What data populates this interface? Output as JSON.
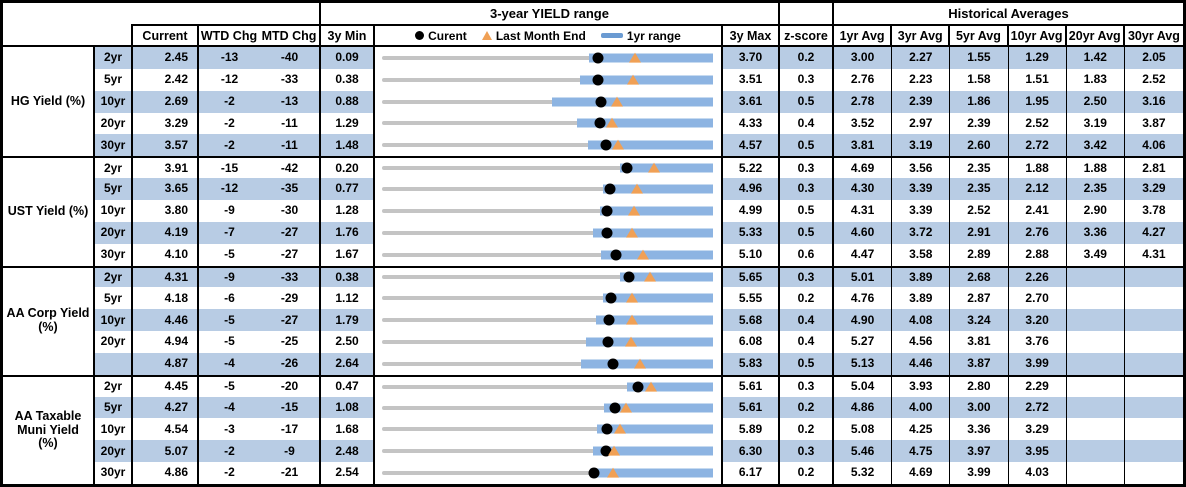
{
  "header": {
    "range_title": "3-year YIELD range",
    "hist_title": "Historical Averages",
    "col_current": "Current",
    "col_wtd": "WTD Chg",
    "col_mtd": "MTD Chg",
    "col_min": "3y Min",
    "col_max": "3y Max",
    "col_z": "z-score",
    "avg_cols": [
      "1yr Avg",
      "3yr Avg",
      "5yr Avg",
      "10yr Avg",
      "20yr Avg",
      "30yr Avg"
    ],
    "legend": {
      "current": "Curent",
      "last_month": "Last Month End",
      "range": "1yr range"
    }
  },
  "colors": {
    "row_shade": "#b8cce4",
    "range_bar": "#8db4e2",
    "track": "#c4c4c4",
    "marker_triangle": "#f0a055",
    "marker_dot": "#000000",
    "legend_dash": "#6b9bd2",
    "border": "#000000"
  },
  "chart_data": {
    "type": "table",
    "note": "Each row has a range strip: gray track spans 3y Min to 3y Max, blue bar is 1yr range (extends to 3y Max), black dot = Current, orange triangle = Last Month End (Current minus MTD change in bp).",
    "groups": [
      {
        "label_lines": [
          "HG Yield (%)"
        ],
        "rows": [
          {
            "tenor": "2yr",
            "current": "2.45",
            "wtd": "-13",
            "mtd": "-40",
            "min": "0.09",
            "max": "3.70",
            "z": "0.2",
            "avgs": [
              "3.00",
              "2.27",
              "1.55",
              "1.29",
              "1.42",
              "2.05"
            ],
            "bar_lo": 2.35,
            "lme": 2.85
          },
          {
            "tenor": "5yr",
            "current": "2.42",
            "wtd": "-12",
            "mtd": "-33",
            "min": "0.38",
            "max": "3.51",
            "z": "0.3",
            "avgs": [
              "2.76",
              "2.23",
              "1.58",
              "1.51",
              "1.83",
              "2.52"
            ],
            "bar_lo": 2.25,
            "lme": 2.75
          },
          {
            "tenor": "10yr",
            "current": "2.69",
            "wtd": "-2",
            "mtd": "-13",
            "min": "0.88",
            "max": "3.61",
            "z": "0.5",
            "avgs": [
              "2.78",
              "2.39",
              "1.86",
              "1.95",
              "2.50",
              "3.16"
            ],
            "bar_lo": 2.28,
            "lme": 2.82
          },
          {
            "tenor": "20yr",
            "current": "3.29",
            "wtd": "-2",
            "mtd": "-11",
            "min": "1.29",
            "max": "4.33",
            "z": "0.4",
            "avgs": [
              "3.52",
              "2.97",
              "2.39",
              "2.52",
              "3.19",
              "3.87"
            ],
            "bar_lo": 3.08,
            "lme": 3.4
          },
          {
            "tenor": "30yr",
            "current": "3.57",
            "wtd": "-2",
            "mtd": "-11",
            "min": "1.48",
            "max": "4.57",
            "z": "0.5",
            "avgs": [
              "3.81",
              "3.19",
              "2.60",
              "2.72",
              "3.42",
              "4.06"
            ],
            "bar_lo": 3.4,
            "lme": 3.68
          }
        ]
      },
      {
        "label_lines": [
          "UST Yield (%)"
        ],
        "rows": [
          {
            "tenor": "2yr",
            "current": "3.91",
            "wtd": "-15",
            "mtd": "-42",
            "min": "0.20",
            "max": "5.22",
            "z": "0.3",
            "avgs": [
              "4.69",
              "3.56",
              "2.35",
              "1.88",
              "1.88",
              "2.81"
            ],
            "bar_lo": 3.81,
            "lme": 4.33
          },
          {
            "tenor": "5yr",
            "current": "3.65",
            "wtd": "-12",
            "mtd": "-35",
            "min": "0.77",
            "max": "4.96",
            "z": "0.3",
            "avgs": [
              "4.30",
              "3.39",
              "2.35",
              "2.12",
              "2.35",
              "3.29"
            ],
            "bar_lo": 3.57,
            "lme": 4.0
          },
          {
            "tenor": "10yr",
            "current": "3.80",
            "wtd": "-9",
            "mtd": "-30",
            "min": "1.28",
            "max": "4.99",
            "z": "0.5",
            "avgs": [
              "4.31",
              "3.39",
              "2.52",
              "2.41",
              "2.90",
              "3.78"
            ],
            "bar_lo": 3.72,
            "lme": 4.1
          },
          {
            "tenor": "20yr",
            "current": "4.19",
            "wtd": "-7",
            "mtd": "-27",
            "min": "1.76",
            "max": "5.33",
            "z": "0.5",
            "avgs": [
              "4.60",
              "3.72",
              "2.91",
              "2.76",
              "3.36",
              "4.27"
            ],
            "bar_lo": 4.04,
            "lme": 4.46
          },
          {
            "tenor": "30yr",
            "current": "4.10",
            "wtd": "-5",
            "mtd": "-27",
            "min": "1.67",
            "max": "5.10",
            "z": "0.6",
            "avgs": [
              "4.47",
              "3.58",
              "2.89",
              "2.88",
              "3.49",
              "4.31"
            ],
            "bar_lo": 3.94,
            "lme": 4.37
          }
        ]
      },
      {
        "label_lines": [
          "AA Corp Yield",
          "(%)"
        ],
        "rows": [
          {
            "tenor": "2yr",
            "current": "4.31",
            "wtd": "-9",
            "mtd": "-33",
            "min": "0.38",
            "max": "5.65",
            "z": "0.3",
            "avgs": [
              "5.01",
              "3.89",
              "2.68",
              "2.26",
              "",
              ""
            ],
            "bar_lo": 4.17,
            "lme": 4.64
          },
          {
            "tenor": "5yr",
            "current": "4.18",
            "wtd": "-6",
            "mtd": "-29",
            "min": "1.12",
            "max": "5.55",
            "z": "0.2",
            "avgs": [
              "4.76",
              "3.89",
              "2.87",
              "2.70",
              "",
              ""
            ],
            "bar_lo": 4.08,
            "lme": 4.47
          },
          {
            "tenor": "10yr",
            "current": "4.46",
            "wtd": "-5",
            "mtd": "-27",
            "min": "1.79",
            "max": "5.68",
            "z": "0.4",
            "avgs": [
              "4.90",
              "4.08",
              "3.24",
              "3.20",
              "",
              ""
            ],
            "bar_lo": 4.3,
            "lme": 4.73
          },
          {
            "tenor": "20yr",
            "current": "4.94",
            "wtd": "-5",
            "mtd": "-25",
            "min": "2.50",
            "max": "6.08",
            "z": "0.4",
            "avgs": [
              "5.27",
              "4.56",
              "3.81",
              "3.76",
              "",
              ""
            ],
            "bar_lo": 4.71,
            "lme": 5.19
          },
          {
            "tenor": "",
            "current": "4.87",
            "wtd": "-4",
            "mtd": "-26",
            "min": "2.64",
            "max": "5.83",
            "z": "0.5",
            "avgs": [
              "5.13",
              "4.46",
              "3.87",
              "3.99",
              "",
              ""
            ],
            "bar_lo": 4.56,
            "lme": 5.13
          }
        ]
      },
      {
        "label_lines": [
          "AA Taxable",
          "Muni Yield",
          "(%)"
        ],
        "rows": [
          {
            "tenor": "2yr",
            "current": "4.45",
            "wtd": "-5",
            "mtd": "-20",
            "min": "0.47",
            "max": "5.61",
            "z": "0.3",
            "avgs": [
              "5.04",
              "3.93",
              "2.80",
              "2.29",
              "",
              ""
            ],
            "bar_lo": 4.28,
            "lme": 4.65
          },
          {
            "tenor": "5yr",
            "current": "4.27",
            "wtd": "-4",
            "mtd": "-15",
            "min": "1.08",
            "max": "5.61",
            "z": "0.2",
            "avgs": [
              "4.86",
              "4.00",
              "3.00",
              "2.72",
              "",
              ""
            ],
            "bar_lo": 4.12,
            "lme": 4.42
          },
          {
            "tenor": "10yr",
            "current": "4.54",
            "wtd": "-3",
            "mtd": "-17",
            "min": "1.68",
            "max": "5.89",
            "z": "0.2",
            "avgs": [
              "5.08",
              "4.25",
              "3.36",
              "3.29",
              "",
              ""
            ],
            "bar_lo": 4.42,
            "lme": 4.71
          },
          {
            "tenor": "20yr",
            "current": "5.07",
            "wtd": "-2",
            "mtd": "-9",
            "min": "2.48",
            "max": "6.30",
            "z": "0.3",
            "avgs": [
              "5.46",
              "4.75",
              "3.97",
              "3.95",
              "",
              ""
            ],
            "bar_lo": 4.92,
            "lme": 5.16
          },
          {
            "tenor": "30yr",
            "current": "4.86",
            "wtd": "-2",
            "mtd": "-21",
            "min": "2.54",
            "max": "6.17",
            "z": "0.2",
            "avgs": [
              "5.32",
              "4.69",
              "3.99",
              "4.03",
              "",
              ""
            ],
            "bar_lo": 4.82,
            "lme": 5.07
          }
        ]
      }
    ]
  }
}
